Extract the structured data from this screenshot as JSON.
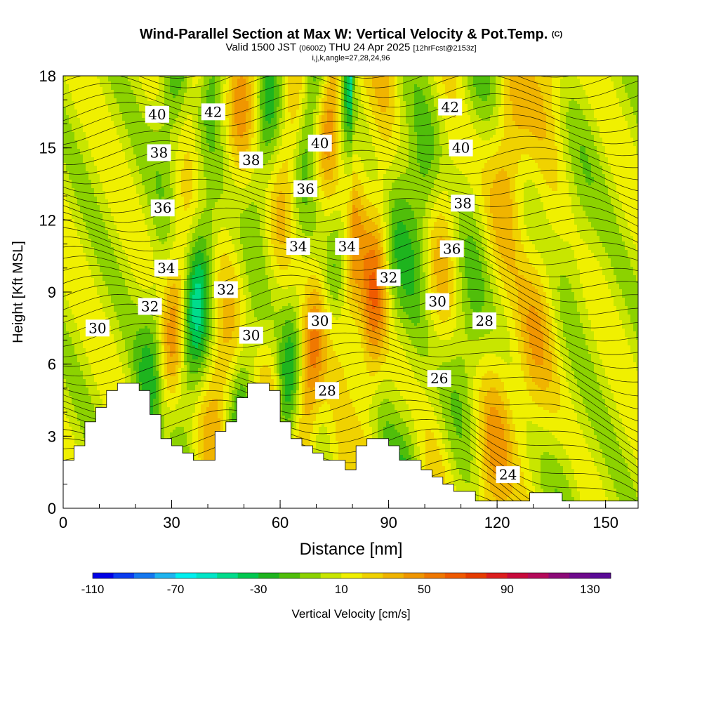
{
  "header": {
    "title_main": "Wind-Parallel Section at Max W: Vertical Velocity & Pot.Temp.",
    "title_copyright": "(C)",
    "valid_prefix": "Valid 1500 JST",
    "valid_utc": "(0600Z)",
    "valid_date": "THU 24 Apr 2025",
    "forecast_info": "[12hrFcst@2153z]",
    "grid_info": "i,j,k,angle=27,28,24,96"
  },
  "chart_data": {
    "type": "heatmap",
    "xlabel": "Distance [nm]",
    "ylabel": "Height [Kft MSL]",
    "xlim": [
      0,
      159
    ],
    "ylim": [
      0,
      18
    ],
    "x_ticks": [
      0,
      30,
      60,
      90,
      120,
      150
    ],
    "y_ticks": [
      0,
      3,
      6,
      9,
      12,
      15,
      18
    ],
    "colorbar": {
      "label": "Vertical Velocity [cm/s]",
      "tick_labels": [
        "-110",
        "-70",
        "-30",
        "10",
        "50",
        "90",
        "130"
      ],
      "tick_values": [
        -110,
        -70,
        -30,
        10,
        50,
        90,
        130
      ],
      "range": [
        -110,
        140
      ],
      "step": 10,
      "colors": [
        "#0000e6",
        "#0a3cf0",
        "#1478f0",
        "#1eb4f0",
        "#00f0f0",
        "#00e6c8",
        "#00dc8c",
        "#00c850",
        "#1eb41e",
        "#50be0a",
        "#8cd200",
        "#c8e600",
        "#f0f000",
        "#f0d200",
        "#f0b400",
        "#f09600",
        "#f07800",
        "#f05a00",
        "#e63c00",
        "#dc1e1e",
        "#c80a3c",
        "#b40a5a",
        "#8c0a78",
        "#6e0a8c",
        "#5a0a96"
      ]
    },
    "theta_contours": {
      "units": "deg C",
      "labels": [
        {
          "text": "40",
          "x": 26,
          "y": 16.4
        },
        {
          "text": "42",
          "x": 41.5,
          "y": 16.5
        },
        {
          "text": "38",
          "x": 26.5,
          "y": 14.8
        },
        {
          "text": "36",
          "x": 27.5,
          "y": 12.5
        },
        {
          "text": "34",
          "x": 28.5,
          "y": 10.0
        },
        {
          "text": "32",
          "x": 24,
          "y": 8.4
        },
        {
          "text": "30",
          "x": 9.5,
          "y": 7.5
        },
        {
          "text": "38",
          "x": 52,
          "y": 14.5
        },
        {
          "text": "32",
          "x": 45,
          "y": 9.1
        },
        {
          "text": "30",
          "x": 52,
          "y": 7.2
        },
        {
          "text": "40",
          "x": 71,
          "y": 15.2
        },
        {
          "text": "36",
          "x": 67,
          "y": 13.3
        },
        {
          "text": "34",
          "x": 65,
          "y": 10.9
        },
        {
          "text": "34",
          "x": 78.5,
          "y": 10.9
        },
        {
          "text": "30",
          "x": 71,
          "y": 7.8
        },
        {
          "text": "28",
          "x": 73,
          "y": 4.9
        },
        {
          "text": "32",
          "x": 90,
          "y": 9.6
        },
        {
          "text": "42",
          "x": 107,
          "y": 16.7
        },
        {
          "text": "40",
          "x": 110,
          "y": 15.0
        },
        {
          "text": "38",
          "x": 110.5,
          "y": 12.7
        },
        {
          "text": "36",
          "x": 107.5,
          "y": 10.8
        },
        {
          "text": "30",
          "x": 103.5,
          "y": 8.6
        },
        {
          "text": "28",
          "x": 116.5,
          "y": 7.8
        },
        {
          "text": "26",
          "x": 104,
          "y": 5.4
        },
        {
          "text": "24",
          "x": 123,
          "y": 1.4
        }
      ]
    },
    "terrain_kft": [
      [
        0,
        2.0
      ],
      [
        3,
        2.0
      ],
      [
        3,
        2.6
      ],
      [
        6,
        2.6
      ],
      [
        6,
        3.6
      ],
      [
        9,
        3.6
      ],
      [
        9,
        4.2
      ],
      [
        12,
        4.2
      ],
      [
        12,
        4.9
      ],
      [
        15,
        4.9
      ],
      [
        15,
        5.2
      ],
      [
        18,
        5.2
      ],
      [
        18,
        5.2
      ],
      [
        21,
        5.2
      ],
      [
        21,
        4.9
      ],
      [
        24,
        4.9
      ],
      [
        24,
        3.9
      ],
      [
        27,
        3.9
      ],
      [
        27,
        2.9
      ],
      [
        30,
        2.9
      ],
      [
        30,
        2.6
      ],
      [
        33,
        2.6
      ],
      [
        33,
        2.3
      ],
      [
        36,
        2.3
      ],
      [
        36,
        2.0
      ],
      [
        39,
        2.0
      ],
      [
        39,
        2.0
      ],
      [
        42,
        2.0
      ],
      [
        42,
        3.2
      ],
      [
        45,
        3.2
      ],
      [
        45,
        3.6
      ],
      [
        48,
        3.6
      ],
      [
        48,
        4.6
      ],
      [
        51,
        4.6
      ],
      [
        51,
        5.2
      ],
      [
        54,
        5.2
      ],
      [
        54,
        5.2
      ],
      [
        57,
        5.2
      ],
      [
        57,
        4.9
      ],
      [
        60,
        4.9
      ],
      [
        60,
        3.6
      ],
      [
        63,
        3.6
      ],
      [
        63,
        2.9
      ],
      [
        66,
        2.9
      ],
      [
        66,
        2.6
      ],
      [
        69,
        2.6
      ],
      [
        69,
        2.3
      ],
      [
        72,
        2.3
      ],
      [
        72,
        2.0
      ],
      [
        75,
        2.0
      ],
      [
        75,
        2.0
      ],
      [
        78,
        2.0
      ],
      [
        78,
        1.6
      ],
      [
        81,
        1.6
      ],
      [
        81,
        2.6
      ],
      [
        84,
        2.6
      ],
      [
        84,
        2.9
      ],
      [
        87,
        2.9
      ],
      [
        87,
        2.9
      ],
      [
        90,
        2.9
      ],
      [
        90,
        2.6
      ],
      [
        93,
        2.6
      ],
      [
        93,
        2.0
      ],
      [
        96,
        2.0
      ],
      [
        96,
        2.0
      ],
      [
        99,
        2.0
      ],
      [
        99,
        1.6
      ],
      [
        102,
        1.6
      ],
      [
        102,
        1.3
      ],
      [
        105,
        1.3
      ],
      [
        105,
        1.0
      ],
      [
        108,
        1.0
      ],
      [
        108,
        0.7
      ],
      [
        111,
        0.7
      ],
      [
        111,
        0.7
      ],
      [
        114,
        0.7
      ],
      [
        114,
        0.3
      ],
      [
        117,
        0.3
      ],
      [
        117,
        0.3
      ],
      [
        120,
        0.3
      ],
      [
        120,
        0.3
      ],
      [
        123,
        0.3
      ],
      [
        123,
        0.3
      ],
      [
        126,
        0.3
      ],
      [
        126,
        0.3
      ],
      [
        129,
        0.3
      ],
      [
        129,
        0.65
      ],
      [
        132,
        0.65
      ],
      [
        132,
        0.65
      ],
      [
        135,
        0.65
      ],
      [
        135,
        0.65
      ],
      [
        138,
        0.65
      ],
      [
        138,
        0.3
      ],
      [
        141,
        0.3
      ],
      [
        141,
        0.3
      ],
      [
        144,
        0.3
      ],
      [
        144,
        0.3
      ],
      [
        147,
        0.3
      ],
      [
        147,
        0.3
      ],
      [
        150,
        0.3
      ],
      [
        150,
        0.3
      ],
      [
        159,
        0.3
      ]
    ]
  }
}
